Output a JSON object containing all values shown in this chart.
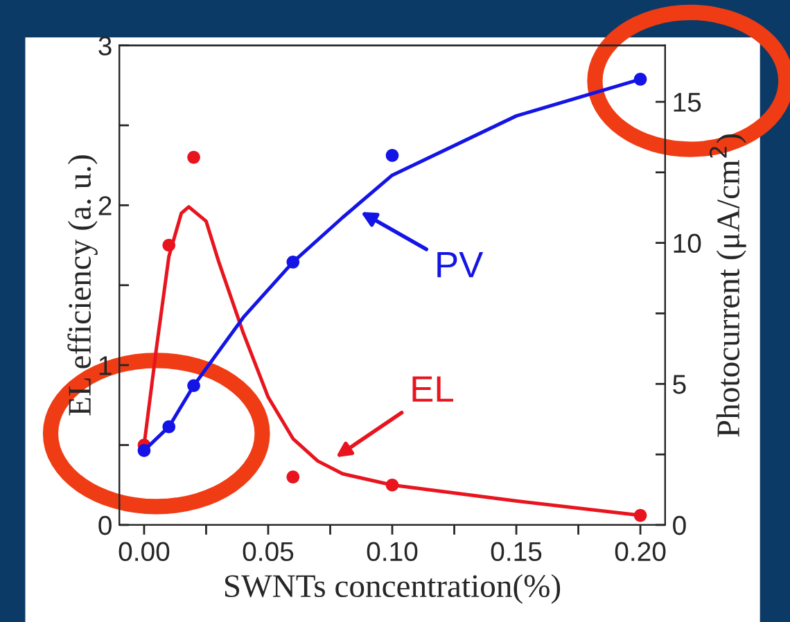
{
  "chart_data": {
    "type": "scatter",
    "xlabel": "SWNTs concentration(%)",
    "ylabel": "EL efficiency (a. u.)",
    "y2label": "Photocurrent (μA/cm$^{2}$)",
    "x": [
      0.0,
      0.01,
      0.02,
      0.06,
      0.1,
      0.2
    ],
    "series": [
      {
        "color": "#e8141e",
        "marker": "circle",
        "values": [
          0.5,
          1.75,
          2.3,
          0.3,
          0.25,
          0.06
        ]
      },
      {
        "type": "line",
        "marker": "none",
        "color": "#e8141e",
        "x": [
          0.0,
          0.005,
          0.01,
          0.015,
          0.018,
          0.025,
          0.03,
          0.04,
          0.05,
          0.06,
          0.07,
          0.08,
          0.1,
          0.15,
          0.2
        ],
        "values": [
          0.5,
          1.11,
          1.68,
          1.95,
          1.99,
          1.9,
          1.65,
          1.2,
          0.8,
          0.54,
          0.4,
          0.32,
          0.25,
          0.15,
          0.06
        ]
      },
      {
        "axis": "y2",
        "marker": "circle",
        "color": "#1414e6",
        "values": [
          2.64,
          3.48,
          4.94,
          9.32,
          13.1,
          15.8
        ]
      },
      {
        "type": "line",
        "marker": "none",
        "axis": "y2",
        "color": "#1414e6",
        "x": [
          0.0,
          0.01,
          0.02,
          0.04,
          0.06,
          0.08,
          0.1,
          0.15,
          0.2
        ],
        "values": [
          2.64,
          3.48,
          4.94,
          7.36,
          9.32,
          10.9,
          12.4,
          14.5,
          15.8
        ]
      }
    ],
    "xlim": [
      -0.01,
      0.21
    ],
    "xticks": [
      {
        "value": 0.0,
        "label": "0.00"
      },
      {
        "value": 0.025,
        "label": null
      },
      {
        "value": 0.05,
        "label": "0.05"
      },
      {
        "value": 0.075,
        "label": null
      },
      {
        "value": 0.1,
        "label": "0.10"
      },
      {
        "value": 0.125,
        "label": null
      },
      {
        "value": 0.15,
        "label": "0.15"
      },
      {
        "value": 0.175,
        "label": null
      },
      {
        "value": 0.2,
        "label": "0.20"
      }
    ],
    "ylim": [
      0,
      3
    ],
    "yticks": [
      0,
      {
        "value": 0.5,
        "label": null
      },
      1,
      {
        "value": 1.5,
        "label": null
      },
      2,
      {
        "value": 2.5,
        "label": null
      },
      3
    ],
    "y2lim": [
      0,
      17
    ],
    "y2ticks": [
      0,
      {
        "value": 2.5,
        "label": null
      },
      5,
      {
        "value": 7.5,
        "label": null
      },
      10,
      {
        "value": 12.5,
        "label": null
      },
      15
    ],
    "annotations": [
      {
        "text": "PV",
        "x": 0.086,
        "y": 1.97
      },
      {
        "text": "EL",
        "x": 0.076,
        "y": 0.41
      }
    ],
    "line_style": "solid",
    "grid": false,
    "legend": false
  }
}
